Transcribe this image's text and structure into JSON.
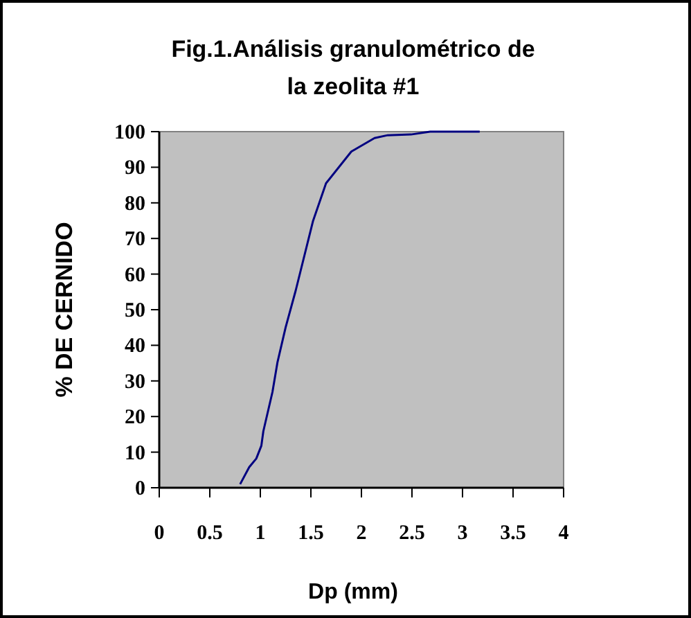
{
  "chart_data": {
    "type": "line",
    "title": "Fig.1.Análisis granulométrico de la zeolita #1",
    "xlabel": "Dp (mm)",
    "ylabel": "% DE CERNIDO",
    "x": [
      0.8,
      0.89,
      0.96,
      1.01,
      1.03,
      1.12,
      1.17,
      1.25,
      1.35,
      1.52,
      1.65,
      1.9,
      2.13,
      2.26,
      2.49,
      2.68,
      3.17
    ],
    "series": [
      {
        "color": "#000080",
        "values": [
          1,
          5.8,
          8.2,
          11.8,
          15.9,
          26.9,
          35.3,
          45,
          55.4,
          74.8,
          85.5,
          94.4,
          98.2,
          99,
          99.2,
          100,
          100
        ]
      }
    ],
    "xlim": [
      0,
      4
    ],
    "xticks": [
      0,
      0.5,
      1,
      1.5,
      2,
      2.5,
      3,
      3.5,
      4
    ],
    "ylim": [
      0,
      100
    ],
    "yticks": [
      0,
      10,
      20,
      30,
      40,
      50,
      60,
      70,
      80,
      90,
      100
    ],
    "grid": false,
    "marker": "none",
    "line_style": "solid"
  }
}
